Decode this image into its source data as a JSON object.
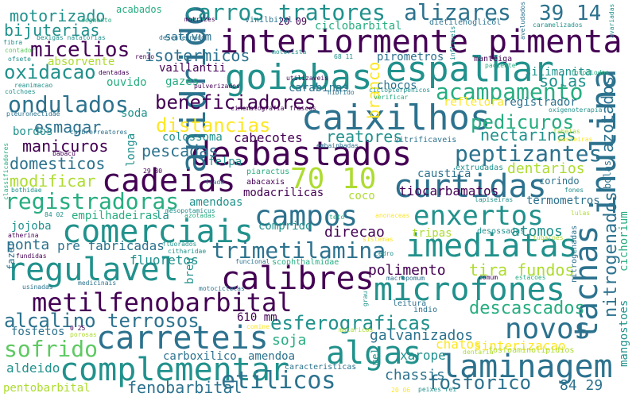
{
  "palette": {
    "dark": "#440154",
    "indigo": "#3b528b",
    "blue": "#2c728e",
    "teal": "#21918c",
    "green": "#27ad81",
    "light-green": "#5ec962",
    "yellow-green": "#addc30",
    "yellow": "#fde725",
    "background": "#ffffff"
  },
  "words": [
    {
      "text": "interiormente",
      "color": "dark"
    },
    {
      "text": "pimenta",
      "color": "dark"
    },
    {
      "text": "desbastados",
      "color": "dark"
    },
    {
      "text": "cadeias",
      "color": "dark"
    },
    {
      "text": "calibres",
      "color": "dark"
    },
    {
      "text": "metilfenobarbital",
      "color": "dark"
    },
    {
      "text": "caixilhos",
      "color": "blue"
    },
    {
      "text": "goiabas",
      "color": "teal"
    },
    {
      "text": "espalhar",
      "color": "teal"
    },
    {
      "text": "curtidas",
      "color": "blue"
    },
    {
      "text": "campos",
      "color": "blue"
    },
    {
      "text": "enxertos",
      "color": "teal"
    },
    {
      "text": "comerciais",
      "color": "teal"
    },
    {
      "text": "regulavel",
      "color": "teal"
    },
    {
      "text": "imediatas",
      "color": "teal"
    },
    {
      "text": "microfones",
      "color": "teal"
    },
    {
      "text": "carreteis",
      "color": "blue"
    },
    {
      "text": "algas",
      "color": "teal"
    },
    {
      "text": "complementar",
      "color": "teal"
    },
    {
      "text": "laminagem",
      "color": "blue"
    },
    {
      "text": "novos",
      "color": "blue"
    },
    {
      "text": "esferograficas",
      "color": "teal"
    },
    {
      "text": "anidrido",
      "color": "blue"
    },
    {
      "text": "tachas",
      "color": "blue"
    },
    {
      "text": "inulina",
      "color": "blue"
    },
    {
      "text": "nitrogenados",
      "color": "blue"
    },
    {
      "text": "azotados",
      "color": "blue"
    },
    {
      "text": "70 10",
      "color": "yellow-green"
    },
    {
      "text": "carros tratores",
      "color": "teal"
    },
    {
      "text": "alizares",
      "color": "blue"
    },
    {
      "text": "39 14",
      "color": "blue"
    },
    {
      "text": "acampamento",
      "color": "green"
    },
    {
      "text": "beneficiadores",
      "color": "dark"
    },
    {
      "text": "distancias",
      "color": "yellow"
    },
    {
      "text": "pedicuros",
      "color": "green"
    },
    {
      "text": "ondulados",
      "color": "blue"
    },
    {
      "text": "micelios",
      "color": "dark"
    },
    {
      "text": "oxidacao",
      "color": "teal"
    },
    {
      "text": "motorizado",
      "color": "teal"
    },
    {
      "text": "bijuterias",
      "color": "teal"
    },
    {
      "text": "isotermicos",
      "color": "blue"
    },
    {
      "text": "peptizantes",
      "color": "blue"
    },
    {
      "text": "registradoras",
      "color": "green"
    },
    {
      "text": "trimetilamina",
      "color": "blue"
    },
    {
      "text": "alcalino terrosos",
      "color": "blue"
    },
    {
      "text": "sofrido",
      "color": "light-green"
    },
    {
      "text": "galvanizados",
      "color": "blue"
    },
    {
      "text": "descascados",
      "color": "green"
    },
    {
      "text": "etilicos",
      "color": "blue"
    },
    {
      "text": "fosforico",
      "color": "blue"
    },
    {
      "text": "fenobarbital",
      "color": "blue"
    },
    {
      "text": "pentobarbital",
      "color": "yellow-green"
    },
    {
      "text": "solas",
      "color": "teal"
    },
    {
      "text": "esmagar",
      "color": "blue"
    },
    {
      "text": "manicuros",
      "color": "dark"
    },
    {
      "text": "domesticos",
      "color": "blue"
    },
    {
      "text": "modificar",
      "color": "yellow-green"
    },
    {
      "text": "pescadas",
      "color": "blue"
    },
    {
      "text": "reatores",
      "color": "teal"
    },
    {
      "text": "nectarinas",
      "color": "teal"
    },
    {
      "text": "dentarios",
      "color": "yellow-green"
    },
    {
      "text": "tira fundos",
      "color": "yellow-green"
    },
    {
      "text": "polimento",
      "color": "dark"
    },
    {
      "text": "direcao",
      "color": "dark"
    },
    {
      "text": "tiocarbamatos",
      "color": "dark"
    },
    {
      "text": "atomos",
      "color": "teal"
    },
    {
      "text": "termometros",
      "color": "blue"
    },
    {
      "text": "fluoretos",
      "color": "teal"
    },
    {
      "text": "ponta",
      "color": "blue"
    },
    {
      "text": "pre fabricadas",
      "color": "blue"
    },
    {
      "text": "soja",
      "color": "green"
    },
    {
      "text": "carboxilico",
      "color": "blue"
    },
    {
      "text": "amendoa",
      "color": "blue"
    },
    {
      "text": "aldeido",
      "color": "teal"
    },
    {
      "text": "chassis",
      "color": "blue"
    },
    {
      "text": "xarope",
      "color": "teal"
    },
    {
      "text": "chatos",
      "color": "yellow"
    },
    {
      "text": "sinterizacao",
      "color": "yellow"
    },
    {
      "text": "mangostoes",
      "color": "teal"
    },
    {
      "text": "84 29",
      "color": "blue"
    },
    {
      "text": "610 mm",
      "color": "dark"
    },
    {
      "text": "fosfetos",
      "color": "blue"
    },
    {
      "text": "branco",
      "color": "yellow"
    },
    {
      "text": "colossoma",
      "color": "teal"
    },
    {
      "text": "cabecotes",
      "color": "dark"
    },
    {
      "text": "felpa",
      "color": "teal"
    },
    {
      "text": "longa",
      "color": "teal"
    },
    {
      "text": "soda",
      "color": "teal"
    },
    {
      "text": "bordos",
      "color": "teal"
    },
    {
      "text": "registrador",
      "color": "blue"
    },
    {
      "text": "refletora",
      "color": "yellow"
    },
    {
      "text": "chocos",
      "color": "blue"
    },
    {
      "text": "silimanita",
      "color": "teal"
    },
    {
      "text": "gazes",
      "color": "green"
    },
    {
      "text": "vaillantii",
      "color": "dark"
    },
    {
      "text": "sativum",
      "color": "blue"
    },
    {
      "text": "carabinas",
      "color": "blue"
    },
    {
      "text": "pirometros",
      "color": "blue"
    },
    {
      "text": "ciclobarbital",
      "color": "green"
    },
    {
      "text": "20 09",
      "color": "dark"
    },
    {
      "text": "acabados",
      "color": "green"
    },
    {
      "text": "absorvente",
      "color": "yellow-green"
    },
    {
      "text": "ouvido",
      "color": "green"
    },
    {
      "text": "modacrilicas",
      "color": "dark"
    },
    {
      "text": "amendoas",
      "color": "teal"
    },
    {
      "text": "comprido",
      "color": "teal"
    },
    {
      "text": "coco",
      "color": "yellow-green"
    },
    {
      "text": "tripas",
      "color": "yellow-green"
    },
    {
      "text": "caustica",
      "color": "blue"
    },
    {
      "text": "corindo",
      "color": "blue"
    },
    {
      "text": "bolas",
      "color": "blue"
    },
    {
      "text": "cichorium",
      "color": "green"
    },
    {
      "text": "jojoba",
      "color": "teal"
    },
    {
      "text": "empilhadeiras",
      "color": "green"
    },
    {
      "text": "la",
      "color": "teal"
    },
    {
      "text": "breu",
      "color": "teal"
    },
    {
      "text": "fazer",
      "color": "blue"
    },
    {
      "text": "indio",
      "color": "blue"
    },
    {
      "text": "leitura",
      "color": "blue"
    },
    {
      "text": "mel",
      "color": "teal"
    },
    {
      "text": "fiado",
      "color": "blue"
    },
    {
      "text": "abacaxis",
      "color": "dark"
    },
    {
      "text": "piaractus",
      "color": "green"
    },
    {
      "text": "fones",
      "color": "teal"
    },
    {
      "text": "lulas",
      "color": "yellow-green"
    },
    {
      "text": "teto",
      "color": "green"
    },
    {
      "text": "sistemas",
      "color": "yellow"
    },
    {
      "text": "desossadas",
      "color": "teal"
    },
    {
      "text": "tubaroes",
      "color": "yellow-green"
    },
    {
      "text": "nitrogenadas",
      "color": "blue"
    },
    {
      "text": "comum",
      "color": "dark"
    },
    {
      "text": "estacoes",
      "color": "green"
    },
    {
      "text": "fosfoaminolipidios",
      "color": "yellow-green"
    },
    {
      "text": "dentaria",
      "color": "yellow-green"
    },
    {
      "text": "peixes rei",
      "color": "teal"
    },
    {
      "text": "20 06",
      "color": "yellow"
    },
    {
      "text": "caracteristicas",
      "color": "blue"
    },
    {
      "text": "macaricos",
      "color": "yellow-green"
    },
    {
      "text": "comine",
      "color": "yellow"
    },
    {
      "text": "grau",
      "color": "teal"
    },
    {
      "text": "macropomum",
      "color": "blue"
    },
    {
      "text": "funcional",
      "color": "blue"
    },
    {
      "text": "motocicletas",
      "color": "blue"
    },
    {
      "text": "medicinais",
      "color": "blue"
    },
    {
      "text": "usinadas",
      "color": "blue"
    },
    {
      "text": "porosas",
      "color": "yellow-green"
    },
    {
      "text": "0 25",
      "color": "dark"
    },
    {
      "text": "fundidas",
      "color": "dark"
    },
    {
      "text": "atherina",
      "color": "dark"
    },
    {
      "text": "84 02",
      "color": "teal"
    },
    {
      "text": "azotadas",
      "color": "green"
    },
    {
      "text": "mesopotamicus",
      "color": "teal"
    },
    {
      "text": "citharidae",
      "color": "teal"
    },
    {
      "text": "fluorados",
      "color": "teal"
    },
    {
      "text": "scophthalmidae",
      "color": "green"
    },
    {
      "text": "cedro",
      "color": "teal"
    },
    {
      "text": "anonaceas",
      "color": "yellow"
    },
    {
      "text": "extrudadas",
      "color": "teal"
    },
    {
      "text": "vitrificaveis",
      "color": "blue"
    },
    {
      "text": "lapiseiras",
      "color": "teal"
    },
    {
      "text": "embainhadas",
      "color": "blue"
    },
    {
      "text": "dietilenoglicol",
      "color": "blue"
    },
    {
      "text": "vinilbital",
      "color": "blue"
    },
    {
      "text": "motrizes",
      "color": "dark"
    },
    {
      "text": "segmento",
      "color": "green"
    },
    {
      "text": "bexigas natatorias",
      "color": "teal"
    },
    {
      "text": "fibra",
      "color": "teal"
    },
    {
      "text": "contador",
      "color": "light-green"
    },
    {
      "text": "ofsete",
      "color": "teal"
    },
    {
      "text": "reanimacao",
      "color": "teal"
    },
    {
      "text": "colchoes",
      "color": "teal"
    },
    {
      "text": "pleuronectidae",
      "color": "blue"
    },
    {
      "text": "curbrerreatores",
      "color": "blue"
    },
    {
      "text": "babacu",
      "color": "dark"
    },
    {
      "text": "classificadores",
      "color": "green"
    },
    {
      "text": "bothidae",
      "color": "teal"
    },
    {
      "text": "29 30",
      "color": "dark"
    },
    {
      "text": "descafeinado",
      "color": "blue"
    },
    {
      "text": "renio",
      "color": "dark"
    },
    {
      "text": "motorista",
      "color": "teal"
    },
    {
      "text": "dentadas",
      "color": "dark"
    },
    {
      "text": "pulverizados",
      "color": "dark"
    },
    {
      "text": "utilizaveis",
      "color": "dark"
    },
    {
      "text": "cinematografia",
      "color": "dark"
    },
    {
      "text": "frascos",
      "color": "dark"
    },
    {
      "text": "hibrido",
      "color": "blue"
    },
    {
      "text": "ciclopterpenicos",
      "color": "teal"
    },
    {
      "text": "verificar",
      "color": "green"
    },
    {
      "text": "68 11",
      "color": "teal"
    },
    {
      "text": "inflaveis",
      "color": "teal"
    },
    {
      "text": "manteiga",
      "color": "dark"
    },
    {
      "text": "paciente",
      "color": "green"
    },
    {
      "text": "caramelizados",
      "color": "teal"
    },
    {
      "text": "fotodiodos",
      "color": "green"
    },
    {
      "text": "oxigenoterapia",
      "color": "teal"
    },
    {
      "text": "avariadas",
      "color": "teal"
    },
    {
      "text": "aveludados",
      "color": "blue"
    },
    {
      "text": "tabelas",
      "color": "yellow-green"
    },
    {
      "text": "pasteiras",
      "color": "yellow"
    }
  ]
}
